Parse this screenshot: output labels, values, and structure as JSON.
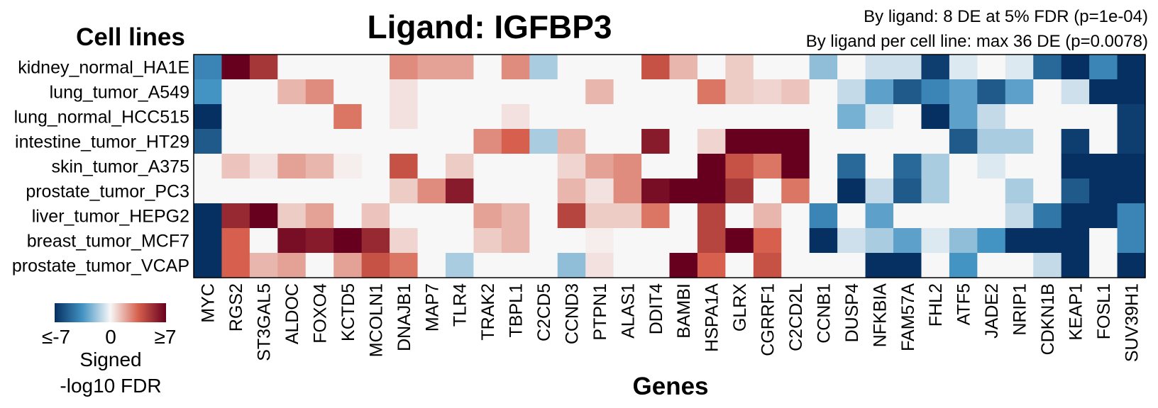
{
  "chart_data": {
    "type": "heatmap",
    "title": "Ligand: IGFBP3",
    "subtitle_lines": [
      "By ligand: 8 DE at 5% FDR (p=1e-04)",
      "By ligand per cell line: max 36 DE (p=0.0078)"
    ],
    "ylabel": "Cell lines",
    "xlabel": "Genes",
    "rows": [
      "kidney_normal_HA1E",
      "lung_tumor_A549",
      "lung_normal_HCC515",
      "intestine_tumor_HT29",
      "skin_tumor_A375",
      "prostate_tumor_PC3",
      "liver_tumor_HEPG2",
      "breast_tumor_MCF7",
      "prostate_tumor_VCAP"
    ],
    "columns": [
      "MYC",
      "RGS2",
      "ST3GAL5",
      "ALDOC",
      "FOXO4",
      "KCTD5",
      "MCOLN1",
      "DNAJB1",
      "MAP7",
      "TLR4",
      "TRAK2",
      "TBPL1",
      "C2CD5",
      "CCND3",
      "PTPN1",
      "ALAS1",
      "DDIT4",
      "BAMBI",
      "HSPA1A",
      "GLRX",
      "CGRRF1",
      "C2CD2L",
      "CCNB1",
      "DUSP4",
      "NFKBIA",
      "FAM57A",
      "FHL2",
      "ATF5",
      "JADE2",
      "NRIP1",
      "CDKN1B",
      "KEAP1",
      "FOSL1",
      "SUV39H1"
    ],
    "values": [
      [
        -4,
        7,
        5,
        0,
        0,
        0,
        0,
        2.5,
        2,
        2,
        0,
        2.5,
        -1.5,
        0,
        0,
        0,
        4,
        1.5,
        0,
        1,
        0,
        0,
        -2,
        0,
        -0.8,
        -0.8,
        -6.5,
        -0.5,
        0,
        -0.5,
        -5,
        -7,
        -4,
        -7
      ],
      [
        -3.5,
        0,
        0,
        1.5,
        2.5,
        0,
        0,
        0.5,
        0,
        0,
        0,
        0,
        0,
        0,
        1.5,
        0,
        0,
        0,
        3,
        1,
        0.8,
        1.2,
        0,
        -1,
        -3,
        -5.5,
        -4,
        -3,
        -5.5,
        -3,
        0,
        -0.8,
        -7,
        -7
      ],
      [
        -7,
        0,
        0,
        0,
        0,
        3,
        0,
        0.5,
        0,
        0,
        0,
        0.5,
        0,
        0,
        0,
        0,
        0,
        0,
        0,
        0,
        0,
        0,
        0,
        -2.5,
        -0.5,
        0,
        -7,
        -3,
        -1,
        0,
        0,
        0,
        0,
        -6.5
      ],
      [
        -5.5,
        0,
        0,
        0,
        0,
        0,
        0,
        0,
        0,
        0,
        2.5,
        3.5,
        -1.5,
        1.5,
        0,
        0,
        6,
        0,
        0.8,
        7,
        7,
        7,
        0,
        0,
        0,
        0,
        0,
        -5.5,
        -1.5,
        -1.5,
        0,
        -6.5,
        0,
        -6.5
      ],
      [
        0,
        1.2,
        0.5,
        2,
        1.5,
        0.2,
        0,
        4,
        0,
        1,
        0,
        0,
        0,
        0.8,
        2,
        2.5,
        0,
        0,
        7,
        4,
        3,
        7,
        0,
        -5,
        0,
        -5,
        -1.5,
        0,
        -0.5,
        0,
        0,
        -7,
        -7,
        -7
      ],
      [
        0,
        0,
        0,
        0,
        0,
        0,
        0,
        1,
        2.5,
        6,
        0,
        0,
        0,
        1.5,
        0.5,
        2.5,
        6.5,
        7,
        7,
        5,
        0,
        3,
        0,
        -7,
        -1,
        -5.5,
        -1.5,
        0,
        0,
        -1.5,
        0,
        -5.5,
        -7,
        -7
      ],
      [
        -7,
        5.5,
        7,
        1,
        2,
        0,
        1.2,
        0,
        0,
        0,
        2,
        1.5,
        0,
        4.5,
        1,
        1,
        3,
        0,
        4.5,
        0,
        1.5,
        0,
        -4,
        0,
        -3,
        0,
        0,
        0,
        0,
        -1,
        -4.5,
        -7,
        -7,
        -4
      ],
      [
        -7,
        3.5,
        0,
        6.5,
        6,
        7,
        5.5,
        0.8,
        0,
        0,
        1,
        1.5,
        0,
        0,
        0.2,
        0,
        0,
        0,
        4.5,
        7,
        3.5,
        0,
        -7,
        -0.8,
        -1.5,
        -3,
        -0.5,
        -2,
        -3.5,
        -7,
        -7,
        -7,
        0,
        -4
      ],
      [
        -7,
        3.5,
        1.5,
        2,
        0,
        2,
        4,
        3,
        0,
        -1.5,
        0,
        0,
        0,
        -2,
        0.5,
        0,
        0,
        7,
        3.5,
        0,
        4,
        0,
        0,
        0,
        -7,
        -7,
        0,
        -3.5,
        0,
        0,
        -1,
        -7,
        0,
        -7
      ]
    ],
    "colorscale": {
      "min": -7,
      "mid": 0,
      "max": 7,
      "low_color": "#053061",
      "mid_color": "#f7f7f7",
      "high_color": "#67001f",
      "title_lines": [
        "Signed",
        "-log10 FDR"
      ],
      "tick_labels": [
        "≤-7",
        "0",
        "≥7"
      ]
    }
  }
}
